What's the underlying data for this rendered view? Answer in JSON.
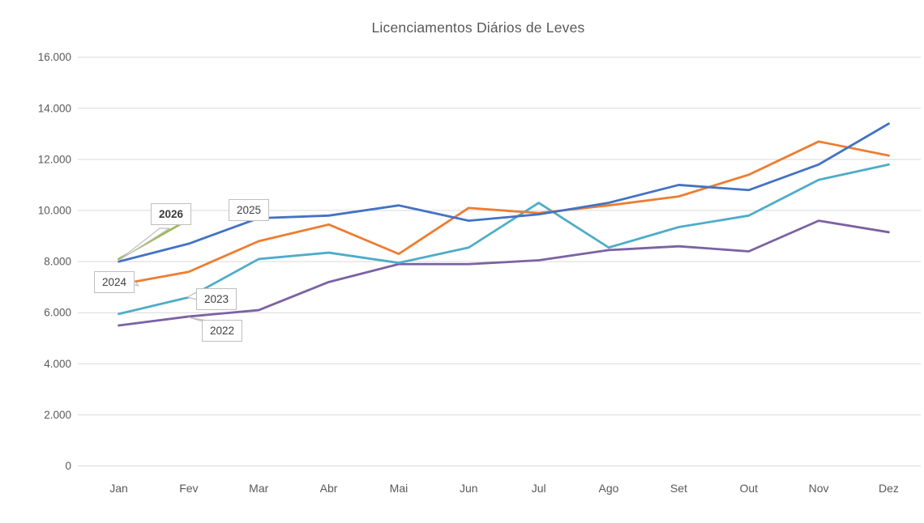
{
  "title": "Licenciamentos Diários de Leves",
  "chart_data": {
    "type": "line",
    "title": "Licenciamentos Diários de Leves",
    "categories": [
      "Jan",
      "Fev",
      "Mar",
      "Abr",
      "Mai",
      "Jun",
      "Jul",
      "Ago",
      "Set",
      "Out",
      "Nov",
      "Dez"
    ],
    "series": [
      {
        "name": "2022",
        "color": "#7B62A3",
        "values": [
          5500,
          5850,
          6100,
          7200,
          7900,
          7900,
          8050,
          8450,
          8600,
          8400,
          9600,
          9150
        ]
      },
      {
        "name": "2023",
        "color": "#4EACC8",
        "values": [
          5950,
          6600,
          8100,
          8350,
          7950,
          8550,
          10300,
          8550,
          9350,
          9800,
          11200,
          11800
        ]
      },
      {
        "name": "2024",
        "color": "#ED7D31",
        "values": [
          7100,
          7600,
          8800,
          9450,
          8300,
          10100,
          9900,
          10200,
          10550,
          11400,
          12700,
          12150
        ]
      },
      {
        "name": "2025",
        "color": "#4472C4",
        "values": [
          8000,
          8700,
          9700,
          9800,
          10200,
          9600,
          9850,
          10300,
          11000,
          10800,
          11800,
          13400
        ]
      },
      {
        "name": "2026",
        "color": "#9DBA58",
        "values": [
          8100,
          9650,
          null,
          null,
          null,
          null,
          null,
          null,
          null,
          null,
          null,
          null
        ]
      }
    ],
    "y_axis": {
      "min": 0,
      "max": 16000,
      "step": 2000,
      "tick_labels": [
        "0",
        "2.000",
        "4.000",
        "6.000",
        "8.000",
        "10.000",
        "12.000",
        "14.000",
        "16.000"
      ]
    },
    "x_axis": {
      "tick_labels": [
        "Jan",
        "Fev",
        "Mar",
        "Abr",
        "Mai",
        "Jun",
        "Jul",
        "Ago",
        "Set",
        "Out",
        "Nov",
        "Dez"
      ]
    },
    "grid": true,
    "legend_position": "none",
    "annotations": "series labeled by white callout boxes near line starts"
  },
  "callouts": [
    {
      "label": "2026",
      "bold": true
    },
    {
      "label": "2025",
      "bold": false
    },
    {
      "label": "2024",
      "bold": false
    },
    {
      "label": "2023",
      "bold": false
    },
    {
      "label": "2022",
      "bold": false
    }
  ],
  "colors": {
    "gridline": "#D9D9D9",
    "axis_text": "#595959",
    "title_text": "#595959",
    "callout_border": "#BFBFBF",
    "callout_text": "#404040",
    "background": "#FFFFFF"
  }
}
